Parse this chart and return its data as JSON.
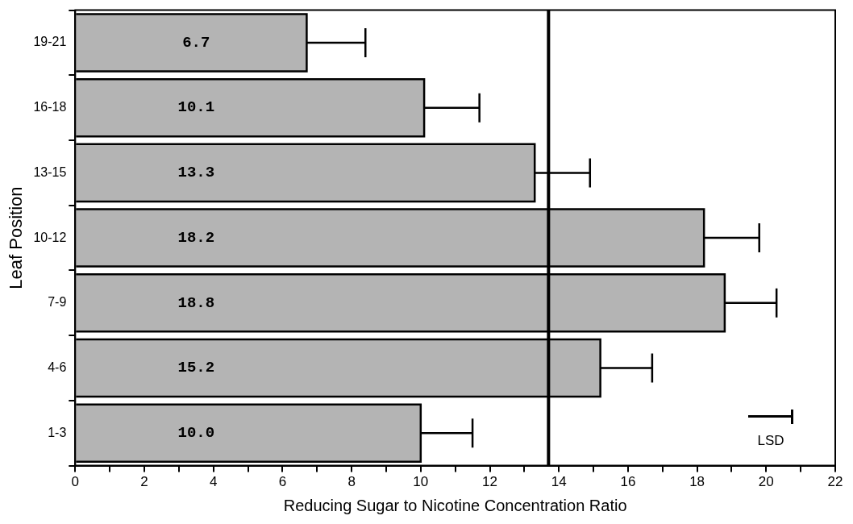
{
  "chart_data": {
    "type": "bar",
    "orientation": "horizontal",
    "xlabel": "Reducing Sugar to Nicotine Concentration Ratio",
    "ylabel": "Leaf Position",
    "categories": [
      "19-21",
      "16-18",
      "13-15",
      "10-12",
      "7-9",
      "4-6",
      "1-3"
    ],
    "values": [
      6.7,
      10.1,
      13.3,
      18.2,
      18.8,
      15.2,
      10.0
    ],
    "errors": [
      [
        6.7,
        8.4
      ],
      [
        10.1,
        11.7
      ],
      [
        13.3,
        14.9
      ],
      [
        18.2,
        19.8
      ],
      [
        18.8,
        20.3
      ],
      [
        15.2,
        16.7
      ],
      [
        10.0,
        11.5
      ]
    ],
    "color": "#b4b4b4",
    "value_labels": [
      "6.7",
      "10.1",
      "13.3",
      "18.2",
      "18.8",
      "15.2",
      "10.0"
    ],
    "xlim": [
      0,
      22
    ],
    "xticks": [
      0,
      {
        "value": 1,
        "label": null
      },
      2,
      {
        "value": 3,
        "label": null
      },
      4,
      {
        "value": 5,
        "label": null
      },
      6,
      {
        "value": 7,
        "label": null
      },
      8,
      {
        "value": 9,
        "label": null
      },
      10,
      {
        "value": 11,
        "label": null
      },
      12,
      {
        "value": 13,
        "label": null
      },
      14,
      {
        "value": 15,
        "label": null
      },
      16,
      {
        "value": 17,
        "label": null
      },
      18,
      {
        "value": 19,
        "label": null
      },
      20,
      {
        "value": 21,
        "label": null
      },
      22
    ],
    "ref_lines": [
      {
        "axis": "x",
        "value": 13.7,
        "color": "#000000"
      }
    ],
    "annotations": [
      "LSD"
    ],
    "grid": false,
    "legend": false
  }
}
